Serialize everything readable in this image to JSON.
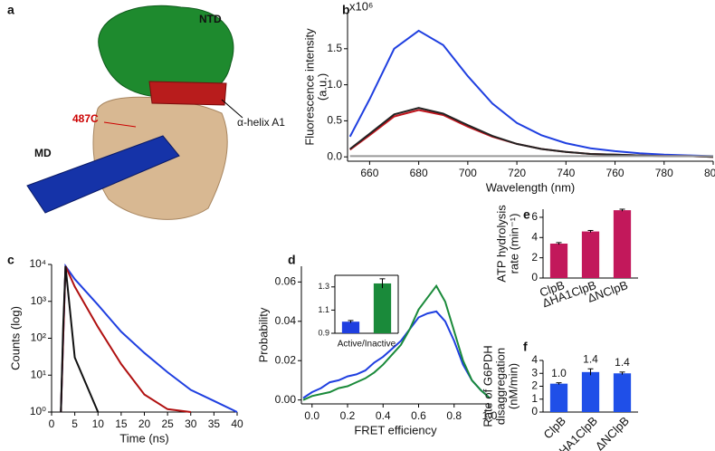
{
  "panel_labels": [
    "a",
    "b",
    "c",
    "d",
    "e",
    "f"
  ],
  "structure": {
    "labels": [
      "NTD",
      "α-helix A1",
      "487C",
      "MD"
    ]
  },
  "chart_data": [
    {
      "type": "line",
      "x_label": "Wavelength (nm)",
      "y_label": [
        "Fluorescence intensity",
        "(a.u.)"
      ],
      "y_multiplier": "x10⁶",
      "x": [
        652,
        660,
        670,
        680,
        690,
        700,
        710,
        720,
        730,
        740,
        750,
        760,
        770,
        780,
        790,
        800
      ],
      "series": [
        {
          "color": "#1f3fe0",
          "values": [
            0.28,
            0.8,
            1.5,
            1.75,
            1.55,
            1.12,
            0.74,
            0.47,
            0.3,
            0.19,
            0.12,
            0.08,
            0.05,
            0.03,
            0.02,
            0.01
          ]
        },
        {
          "color": "#c0141c",
          "values": [
            0.1,
            0.3,
            0.56,
            0.65,
            0.58,
            0.42,
            0.28,
            0.18,
            0.11,
            0.07,
            0.04,
            0.03,
            0.02,
            0.01,
            0.01,
            0.0
          ]
        },
        {
          "color": "#222222",
          "values": [
            0.11,
            0.32,
            0.59,
            0.68,
            0.6,
            0.44,
            0.29,
            0.18,
            0.11,
            0.07,
            0.04,
            0.03,
            0.02,
            0.01,
            0.01,
            0.0
          ]
        },
        {
          "color": "#999999",
          "values": [
            0.01,
            0.01,
            0.01,
            0.01,
            0.01,
            0.01,
            0.01,
            0.01,
            0.01,
            0.01,
            0.01,
            0.01,
            0.01,
            0.01,
            0.01,
            0.01
          ]
        }
      ],
      "xlim": [
        651,
        800
      ],
      "xticks": [
        660,
        680,
        700,
        720,
        740,
        760,
        780,
        800
      ],
      "ylim": [
        -0.06,
        2.0
      ],
      "yticks": [
        {
          "value": 0,
          "label": "0.0"
        },
        {
          "value": 0.5,
          "label": "0.5"
        },
        {
          "value": 1,
          "label": "1.0"
        },
        {
          "value": 1.5,
          "label": "1.5"
        }
      ]
    },
    {
      "type": "line",
      "log_y": true,
      "x_label": "Time (ns)",
      "y_label": [
        "Counts (log)"
      ],
      "x": [
        2,
        2.5,
        3,
        5,
        10,
        15,
        20,
        25,
        30,
        35,
        40
      ],
      "series": [
        {
          "color": "#1f3fe0",
          "values": [
            1,
            100,
            9000,
            4000,
            800,
            150,
            40,
            12,
            4,
            2,
            1
          ]
        },
        {
          "color": "#b01010",
          "values": [
            1,
            100,
            9000,
            2500,
            200,
            20,
            3,
            1.2,
            1,
            null,
            null
          ]
        },
        {
          "color": "#111111",
          "values": [
            1,
            200,
            9000,
            30,
            1,
            null,
            null,
            null,
            null,
            null,
            null
          ]
        }
      ],
      "xlim": [
        0,
        40
      ],
      "xticks": [
        0,
        5,
        10,
        15,
        20,
        25,
        30,
        35,
        40
      ],
      "ylim": [
        1,
        10000
      ],
      "yticks": [
        {
          "value": 1,
          "label": "10⁰"
        },
        {
          "value": 10,
          "label": "10¹"
        },
        {
          "value": 100,
          "label": "10²"
        },
        {
          "value": 1000,
          "label": "10³"
        },
        {
          "value": 10000,
          "label": "10⁴"
        }
      ]
    },
    {
      "type": "line",
      "x_label": "FRET efficiency",
      "y_label": [
        "Probability"
      ],
      "x": [
        -0.05,
        0.0,
        0.05,
        0.1,
        0.15,
        0.2,
        0.25,
        0.3,
        0.35,
        0.4,
        0.45,
        0.5,
        0.55,
        0.6,
        0.65,
        0.7,
        0.75,
        0.8,
        0.85,
        0.9,
        0.95,
        1.0
      ],
      "series": [
        {
          "color": "#1f3fe0",
          "values": [
            0.001,
            0.004,
            0.006,
            0.009,
            0.01,
            0.012,
            0.013,
            0.015,
            0.019,
            0.022,
            0.026,
            0.03,
            0.036,
            0.042,
            0.044,
            0.045,
            0.04,
            0.03,
            0.018,
            0.01,
            0.005,
            0.001
          ]
        },
        {
          "color": "#1a8a3a",
          "values": [
            0.0,
            0.002,
            0.003,
            0.004,
            0.006,
            0.007,
            0.009,
            0.011,
            0.014,
            0.018,
            0.023,
            0.028,
            0.036,
            0.046,
            0.052,
            0.058,
            0.05,
            0.035,
            0.02,
            0.01,
            0.005,
            0.001
          ]
        }
      ],
      "xlim": [
        -0.06,
        1.0
      ],
      "xticks": [
        {
          "value": 0,
          "label": "0.0"
        },
        {
          "value": 0.2,
          "label": "0.2"
        },
        {
          "value": 0.4,
          "label": "0.4"
        },
        {
          "value": 0.6,
          "label": "0.6"
        },
        {
          "value": 0.8,
          "label": "0.8"
        },
        {
          "value": 1,
          "label": "1.0"
        }
      ],
      "ylim": [
        -0.002,
        0.068
      ],
      "yticks": [
        {
          "value": 0,
          "label": "0.00"
        },
        {
          "value": 0.02,
          "label": "0.02"
        },
        {
          "value": 0.04,
          "label": "0.04"
        },
        {
          "value": 0.06,
          "label": "0.06"
        }
      ]
    },
    {
      "type": "bar",
      "x_label": "Active/Inactive",
      "categories": [
        null,
        null
      ],
      "values": [
        1.0,
        1.33
      ],
      "errors": [
        0.01,
        0.04
      ],
      "colors": [
        "#1f3fe0",
        "#1a8a3a"
      ],
      "ylim": [
        0.9,
        1.4
      ],
      "yticks": [
        0.9,
        1.1,
        1.3
      ]
    },
    {
      "type": "bar",
      "y_label": [
        "ATP hydrolysis",
        "rate (min⁻¹)"
      ],
      "categories": [
        "ClpB",
        "ΔHA1ClpB",
        "ΔNClpB"
      ],
      "values": [
        3.4,
        4.6,
        6.7
      ],
      "errors": [
        0.1,
        0.1,
        0.1
      ],
      "colors": [
        "#c2185b",
        "#c2185b",
        "#c2185b"
      ],
      "ylim": [
        0,
        6.8
      ],
      "yticks": [
        0,
        2,
        4,
        6
      ]
    },
    {
      "type": "bar",
      "y_label": [
        "Rate of G6PDH",
        "disaggregation",
        "(nM/min)"
      ],
      "categories": [
        "ClpB",
        "ΔHA1ClpB",
        "ΔNClpB"
      ],
      "values": [
        2.2,
        3.1,
        3.0
      ],
      "errors": [
        0.07,
        0.25,
        0.1
      ],
      "colors": [
        "#1f4fe8",
        "#1f4fe8",
        "#1f4fe8"
      ],
      "annotations": [
        "1.0",
        "1.4",
        "1.4"
      ],
      "ylim": [
        0,
        4
      ],
      "yticks": [
        0,
        1,
        2,
        3,
        4
      ]
    }
  ]
}
